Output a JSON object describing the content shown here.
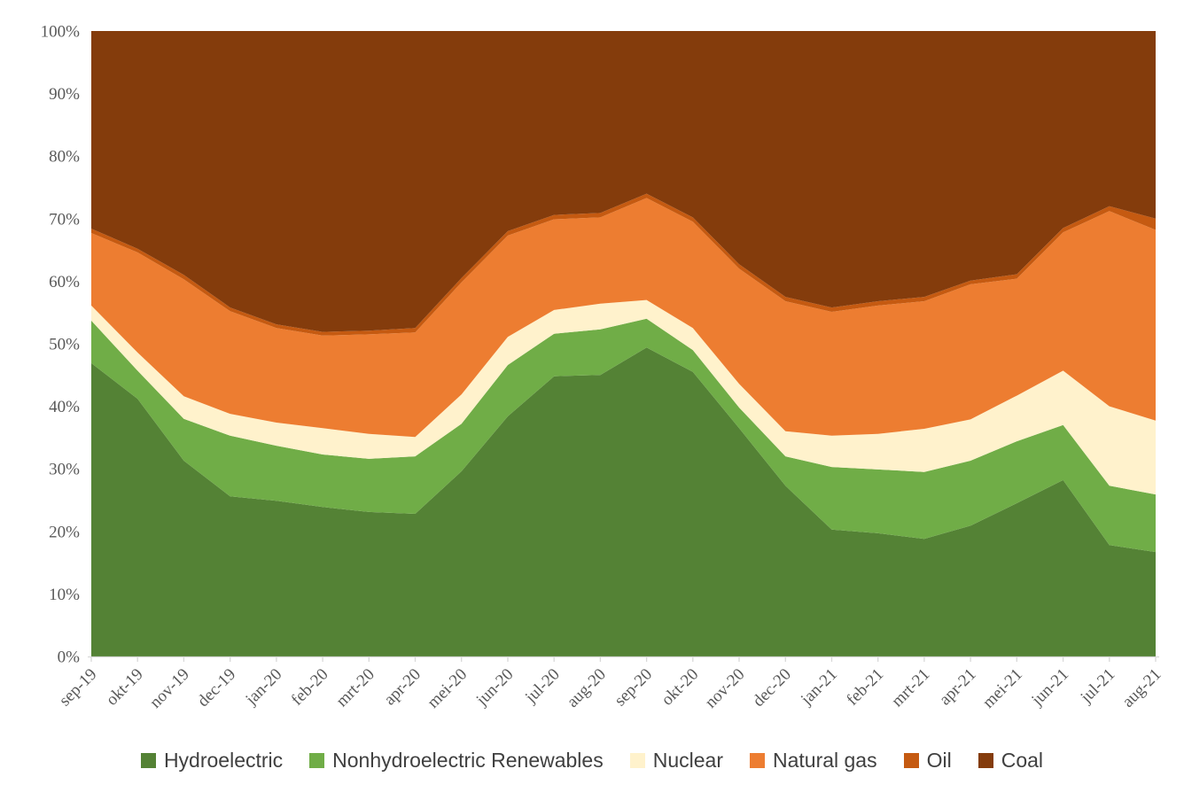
{
  "chart_data": {
    "type": "area",
    "stacking": "percent",
    "title": "",
    "xlabel": "",
    "ylabel": "",
    "legend_position": "bottom",
    "grid": false,
    "ylim": [
      0,
      100
    ],
    "categories": [
      "sep-19",
      "okt-19",
      "nov-19",
      "dec-19",
      "jan-20",
      "feb-20",
      "mrt-20",
      "apr-20",
      "mei-20",
      "jun-20",
      "jul-20",
      "aug-20",
      "sep-20",
      "okt-20",
      "nov-20",
      "dec-20",
      "jan-21",
      "feb-21",
      "mrt-21",
      "apr-21",
      "mei-21",
      "jun-21",
      "jul-21",
      "aug-21"
    ],
    "y_axis_ticks": [
      "0%",
      "10%",
      "20%",
      "30%",
      "40%",
      "50%",
      "60%",
      "70%",
      "80%",
      "90%",
      "100%"
    ],
    "series": [
      {
        "name": "Hydroelectric",
        "color": "#548235",
        "values": [
          46.9,
          41.2,
          31.3,
          25.6,
          24.9,
          23.9,
          23.1,
          22.8,
          29.6,
          38.4,
          44.8,
          45.0,
          49.4,
          45.5,
          36.5,
          27.3,
          20.3,
          19.7,
          18.8,
          20.9,
          24.5,
          28.2,
          17.8,
          16.7
        ]
      },
      {
        "name": "Nonhydroelectric Renewables",
        "color": "#70AD47",
        "values": [
          6.8,
          4.5,
          6.7,
          9.7,
          8.8,
          8.4,
          8.5,
          9.2,
          7.6,
          8.2,
          6.8,
          7.3,
          4.6,
          3.5,
          3.3,
          4.7,
          10.0,
          10.2,
          10.7,
          10.4,
          9.9,
          8.8,
          9.5,
          9.2
        ]
      },
      {
        "name": "Nuclear",
        "color": "#FFF2CC",
        "values": [
          2.4,
          2.9,
          3.6,
          3.5,
          3.7,
          4.2,
          4.0,
          3.1,
          4.7,
          4.5,
          3.8,
          4.1,
          3.0,
          3.5,
          3.8,
          4.0,
          5.0,
          5.7,
          6.9,
          6.6,
          7.3,
          8.7,
          12.7,
          11.8
        ]
      },
      {
        "name": "Natural gas",
        "color": "#ED7D31",
        "values": [
          11.6,
          16.0,
          18.7,
          16.4,
          15.1,
          14.8,
          15.9,
          16.7,
          17.9,
          16.2,
          14.5,
          13.8,
          16.3,
          17.0,
          18.4,
          20.8,
          19.8,
          20.5,
          20.4,
          21.6,
          18.7,
          22.1,
          31.2,
          30.5
        ]
      },
      {
        "name": "Oil",
        "color": "#C55A11",
        "values": [
          0.7,
          0.6,
          0.7,
          0.6,
          0.6,
          0.6,
          0.6,
          0.7,
          0.7,
          0.7,
          0.7,
          0.7,
          0.7,
          0.7,
          0.7,
          0.7,
          0.7,
          0.7,
          0.7,
          0.6,
          0.7,
          0.7,
          0.8,
          1.8
        ]
      },
      {
        "name": "Coal",
        "color": "#843C0C",
        "values": [
          31.6,
          34.8,
          39.0,
          44.2,
          46.9,
          48.1,
          47.9,
          47.5,
          39.5,
          32.0,
          29.4,
          29.1,
          26.0,
          29.8,
          37.3,
          42.5,
          44.2,
          43.2,
          42.5,
          39.9,
          38.9,
          31.5,
          28.0,
          30.0
        ]
      }
    ],
    "axis_text_color": "#595959",
    "legend_text_color": "#404040",
    "axis_line_color": "#D9D9D9"
  }
}
